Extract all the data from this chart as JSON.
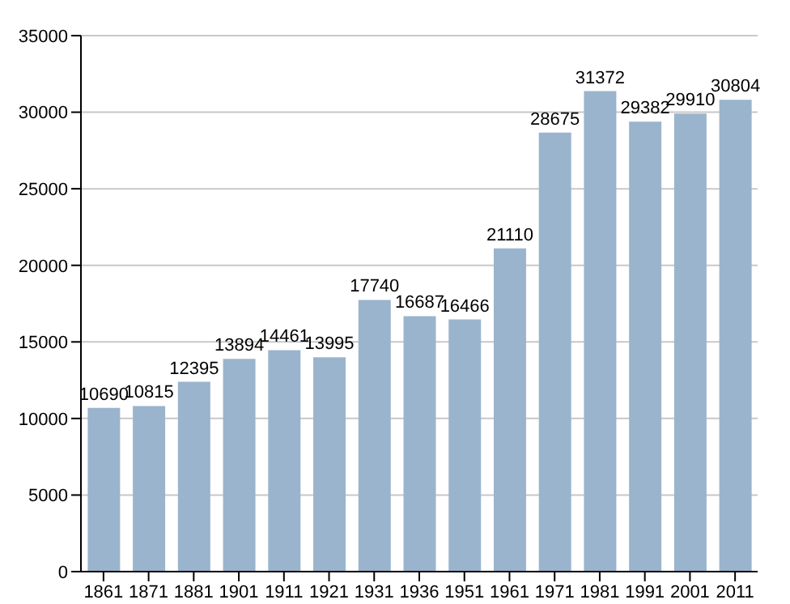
{
  "chart_data": {
    "type": "bar",
    "categories": [
      "1861",
      "1871",
      "1881",
      "1901",
      "1911",
      "1921",
      "1931",
      "1936",
      "1951",
      "1961",
      "1971",
      "1981",
      "1991",
      "2001",
      "2011"
    ],
    "values": [
      10690,
      10815,
      12395,
      13894,
      14461,
      13995,
      17740,
      16687,
      16466,
      21110,
      28675,
      31372,
      29382,
      29910,
      30804
    ],
    "color": "#9bb4cd",
    "ylim": [
      0,
      35000
    ],
    "yticks": [
      0,
      5000,
      10000,
      15000,
      20000,
      25000,
      30000,
      35000
    ],
    "grid": "y",
    "data_labels": true
  }
}
